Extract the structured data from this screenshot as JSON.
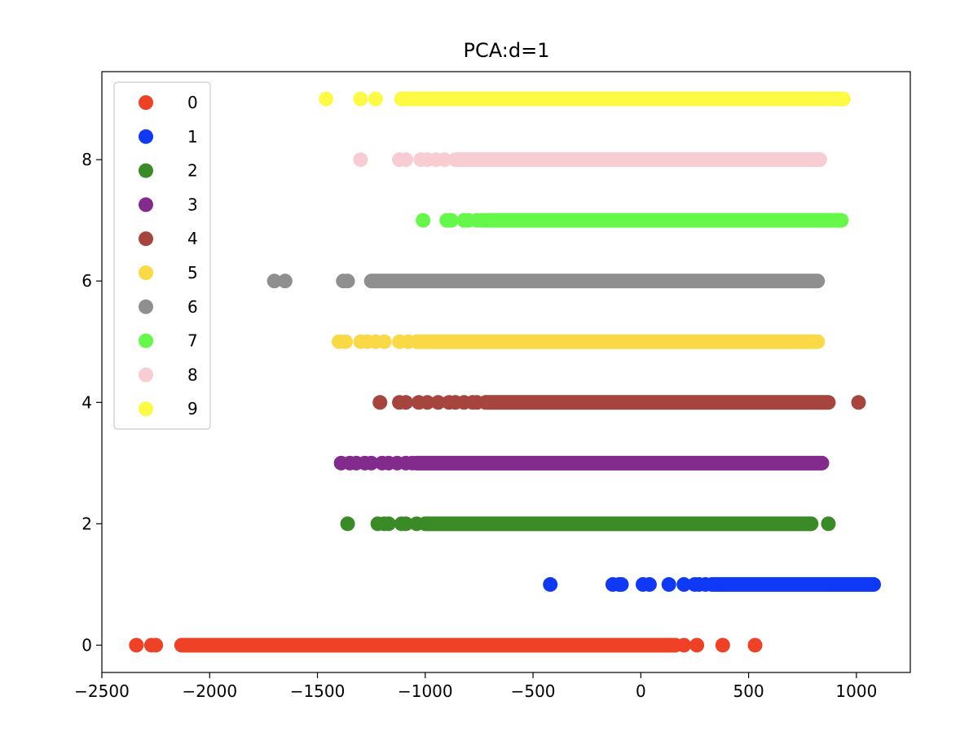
{
  "chart_data": {
    "type": "scatter",
    "title": "PCA:d=1",
    "xlabel": "",
    "ylabel": "",
    "xlim": [
      -2500,
      1250
    ],
    "ylim": [
      -0.45,
      9.45
    ],
    "x_ticks": [
      -2500,
      -2000,
      -1500,
      -1000,
      -500,
      0,
      500,
      1000
    ],
    "x_tick_labels": [
      "−2500",
      "−2000",
      "−1500",
      "−1000",
      "−500",
      "0",
      "500",
      "1000"
    ],
    "y_ticks": [
      0,
      2,
      4,
      6,
      8
    ],
    "y_tick_labels": [
      "0",
      "2",
      "4",
      "6",
      "8"
    ],
    "grid": false,
    "legend_position": "top-left",
    "series": [
      {
        "name": "0",
        "color": "#ee4125",
        "y": 0,
        "dense": [
          -2130,
          160
        ],
        "points": [
          -2340,
          -2270,
          -2250,
          200,
          260,
          380,
          530
        ]
      },
      {
        "name": "1",
        "color": "#0f39f5",
        "y": 1,
        "dense": [
          340,
          1080
        ],
        "points": [
          -420,
          -130,
          -100,
          -90,
          10,
          40,
          130,
          200,
          250,
          270,
          300,
          330
        ]
      },
      {
        "name": "2",
        "color": "#3a8a28",
        "y": 2,
        "dense": [
          -1000,
          790
        ],
        "points": [
          -1360,
          -1220,
          -1190,
          -1170,
          -1110,
          -1090,
          -1040,
          870
        ]
      },
      {
        "name": "3",
        "color": "#832b8c",
        "y": 3,
        "dense": [
          -1040,
          840
        ],
        "points": [
          -1390,
          -1350,
          -1320,
          -1280,
          -1250,
          -1200,
          -1170,
          -1130,
          -1090,
          -1060
        ]
      },
      {
        "name": "4",
        "color": "#a6443e",
        "y": 4,
        "dense": [
          -720,
          870
        ],
        "points": [
          -1210,
          -1120,
          -1090,
          -1030,
          -990,
          -940,
          -890,
          -860,
          -820,
          -780,
          -760,
          1010
        ]
      },
      {
        "name": "5",
        "color": "#fad947",
        "y": 5,
        "dense": [
          -1040,
          820
        ],
        "points": [
          -1400,
          -1370,
          -1300,
          -1270,
          -1230,
          -1190,
          -1120,
          -1080
        ]
      },
      {
        "name": "6",
        "color": "#8f8f8f",
        "y": 6,
        "dense": [
          -1250,
          820
        ],
        "points": [
          -1700,
          -1650,
          -1380,
          -1360
        ]
      },
      {
        "name": "7",
        "color": "#65f84a",
        "y": 7,
        "dense": [
          -720,
          930
        ],
        "points": [
          -1010,
          -900,
          -880,
          -820,
          -800,
          -760,
          -740
        ]
      },
      {
        "name": "8",
        "color": "#f7ccd2",
        "y": 8,
        "dense": [
          -860,
          830
        ],
        "points": [
          -1300,
          -1120,
          -1090,
          -1020,
          -990,
          -950,
          -910
        ]
      },
      {
        "name": "9",
        "color": "#fdfa45",
        "y": 9,
        "dense": [
          -1110,
          940
        ],
        "points": [
          -1460,
          -1300,
          -1230,
          -1060,
          -1020,
          -960,
          -900,
          -870,
          870,
          900
        ]
      }
    ]
  }
}
